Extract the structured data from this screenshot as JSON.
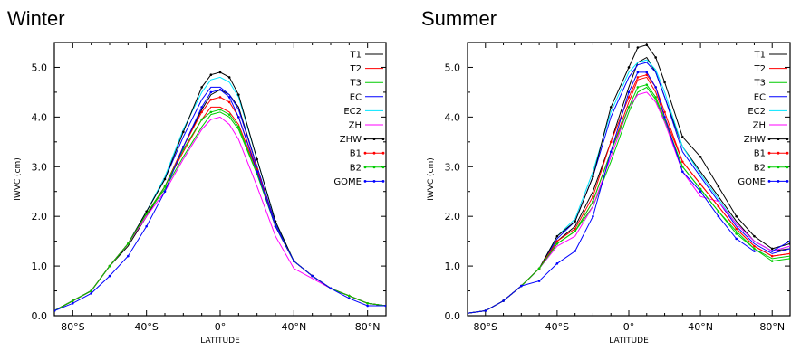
{
  "chart_data": [
    {
      "type": "line",
      "title": "Winter",
      "xlabel": "LATITUDE",
      "ylabel": "IWVC (cm)",
      "xlim": [
        -90,
        90
      ],
      "ylim": [
        0,
        5.5
      ],
      "xticks": [
        -80,
        -40,
        0,
        40,
        80
      ],
      "xtick_labels": [
        "80°S",
        "40°S",
        "0°",
        "40°N",
        "80°N"
      ],
      "yticks": [
        0,
        1,
        2,
        3,
        4,
        5
      ],
      "ytick_labels": [
        "0.0",
        "1.0",
        "2.0",
        "3.0",
        "4.0",
        "5.0"
      ],
      "legend_position": "top-right",
      "series": [
        {
          "name": "T1",
          "color": "#000000",
          "marker": false,
          "x": [
            -90,
            -80,
            -70,
            -60,
            -50,
            -40,
            -30,
            -20,
            -10,
            -5,
            0,
            5,
            10,
            20,
            30,
            40,
            50,
            60,
            70,
            80,
            90
          ],
          "y": [
            0.1,
            0.3,
            0.5,
            1.0,
            1.4,
            2.0,
            2.6,
            3.4,
            4.15,
            4.45,
            4.55,
            4.45,
            4.2,
            3.0,
            1.8,
            1.1,
            0.8,
            0.55,
            0.4,
            0.25,
            0.2
          ]
        },
        {
          "name": "T2",
          "color": "#ff0000",
          "marker": false,
          "x": [
            -90,
            -80,
            -70,
            -60,
            -50,
            -40,
            -30,
            -20,
            -10,
            -5,
            0,
            5,
            10,
            20,
            30,
            40,
            50,
            60,
            70,
            80,
            90
          ],
          "y": [
            0.1,
            0.3,
            0.5,
            1.0,
            1.45,
            2.05,
            2.6,
            3.3,
            3.95,
            4.2,
            4.2,
            4.1,
            3.85,
            2.9,
            1.8,
            1.1,
            0.8,
            0.55,
            0.4,
            0.25,
            0.2
          ]
        },
        {
          "name": "T3",
          "color": "#00cc00",
          "marker": false,
          "x": [
            -90,
            -80,
            -70,
            -60,
            -50,
            -40,
            -30,
            -20,
            -10,
            -5,
            0,
            5,
            10,
            20,
            30,
            40,
            50,
            60,
            70,
            80,
            90
          ],
          "y": [
            0.1,
            0.3,
            0.5,
            1.0,
            1.45,
            2.05,
            2.55,
            3.2,
            3.8,
            4.05,
            4.1,
            4.0,
            3.75,
            2.85,
            1.8,
            1.1,
            0.8,
            0.55,
            0.4,
            0.25,
            0.2
          ]
        },
        {
          "name": "EC",
          "color": "#0000ff",
          "marker": false,
          "x": [
            -90,
            -80,
            -70,
            -60,
            -50,
            -40,
            -30,
            -20,
            -10,
            -5,
            0,
            5,
            10,
            20,
            30,
            40,
            50,
            60,
            70,
            80,
            90
          ],
          "y": [
            0.1,
            0.3,
            0.5,
            1.0,
            1.45,
            2.1,
            2.75,
            3.6,
            4.35,
            4.6,
            4.6,
            4.45,
            4.15,
            3.0,
            1.85,
            1.1,
            0.8,
            0.55,
            0.4,
            0.25,
            0.2
          ]
        },
        {
          "name": "EC2",
          "color": "#00e5ff",
          "marker": false,
          "x": [
            -90,
            -80,
            -70,
            -60,
            -50,
            -40,
            -30,
            -20,
            -10,
            -5,
            0,
            5,
            10,
            20,
            30,
            40,
            50,
            60,
            70,
            80,
            90
          ],
          "y": [
            0.1,
            0.3,
            0.5,
            1.0,
            1.45,
            2.1,
            2.8,
            3.75,
            4.5,
            4.75,
            4.8,
            4.7,
            4.4,
            3.15,
            1.9,
            1.1,
            0.8,
            0.55,
            0.4,
            0.25,
            0.2
          ]
        },
        {
          "name": "ZH",
          "color": "#ff00ff",
          "marker": false,
          "x": [
            -90,
            -80,
            -70,
            -60,
            -50,
            -40,
            -30,
            -20,
            -10,
            -5,
            0,
            5,
            10,
            20,
            30,
            40,
            50,
            60,
            70,
            80,
            90
          ],
          "y": [
            0.1,
            0.3,
            0.5,
            1.0,
            1.45,
            2.0,
            2.5,
            3.15,
            3.75,
            3.95,
            4.0,
            3.85,
            3.55,
            2.6,
            1.6,
            0.95,
            0.75,
            0.55,
            0.4,
            0.25,
            0.2
          ]
        },
        {
          "name": "ZHW",
          "color": "#000000",
          "marker": true,
          "x": [
            -90,
            -80,
            -70,
            -60,
            -50,
            -40,
            -30,
            -20,
            -10,
            -5,
            0,
            5,
            10,
            20,
            30,
            40,
            50,
            60,
            70,
            80,
            90
          ],
          "y": [
            0.1,
            0.3,
            0.5,
            1.0,
            1.45,
            2.1,
            2.75,
            3.7,
            4.6,
            4.85,
            4.9,
            4.8,
            4.45,
            3.15,
            1.9,
            1.1,
            0.8,
            0.55,
            0.4,
            0.25,
            0.2
          ]
        },
        {
          "name": "B1",
          "color": "#ff0000",
          "marker": true,
          "x": [
            -90,
            -80,
            -70,
            -60,
            -50,
            -40,
            -30,
            -20,
            -10,
            -5,
            0,
            5,
            10,
            20,
            30,
            40,
            50,
            60,
            70,
            80,
            90
          ],
          "y": [
            0.1,
            0.3,
            0.5,
            1.0,
            1.45,
            2.05,
            2.6,
            3.4,
            4.1,
            4.35,
            4.4,
            4.3,
            4.0,
            2.95,
            1.8,
            1.1,
            0.8,
            0.55,
            0.4,
            0.25,
            0.2
          ]
        },
        {
          "name": "B2",
          "color": "#00cc00",
          "marker": true,
          "x": [
            -90,
            -80,
            -70,
            -60,
            -50,
            -40,
            -30,
            -20,
            -10,
            -5,
            0,
            5,
            10,
            20,
            30,
            40,
            50,
            60,
            70,
            80,
            90
          ],
          "y": [
            0.1,
            0.3,
            0.5,
            1.0,
            1.45,
            2.05,
            2.6,
            3.35,
            3.95,
            4.1,
            4.15,
            4.05,
            3.8,
            2.85,
            1.8,
            1.1,
            0.8,
            0.55,
            0.4,
            0.25,
            0.2
          ]
        },
        {
          "name": "GOME",
          "color": "#0000ff",
          "marker": true,
          "x": [
            -90,
            -80,
            -70,
            -60,
            -50,
            -40,
            -30,
            -20,
            -10,
            -5,
            0,
            5,
            10,
            20,
            30,
            40,
            50,
            60,
            70,
            80,
            90
          ],
          "y": [
            0.1,
            0.25,
            0.45,
            0.8,
            1.2,
            1.8,
            2.5,
            3.4,
            4.2,
            4.5,
            4.55,
            4.4,
            4.0,
            2.9,
            1.8,
            1.1,
            0.8,
            0.55,
            0.35,
            0.2,
            0.2
          ]
        }
      ]
    },
    {
      "type": "line",
      "title": "Summer",
      "xlabel": "LATITUDE",
      "ylabel": "IWVC (cm)",
      "xlim": [
        -90,
        90
      ],
      "ylim": [
        0,
        5.5
      ],
      "xticks": [
        -80,
        -40,
        0,
        40,
        80
      ],
      "xtick_labels": [
        "80°S",
        "40°S",
        "0°",
        "40°N",
        "80°N"
      ],
      "yticks": [
        0,
        1,
        2,
        3,
        4,
        5
      ],
      "ytick_labels": [
        "0.0",
        "1.0",
        "2.0",
        "3.0",
        "4.0",
        "5.0"
      ],
      "legend_position": "top-right",
      "series": [
        {
          "name": "T1",
          "color": "#000000",
          "marker": false,
          "x": [
            -90,
            -80,
            -70,
            -60,
            -50,
            -40,
            -30,
            -20,
            -10,
            0,
            5,
            10,
            15,
            20,
            30,
            40,
            50,
            60,
            70,
            80,
            90
          ],
          "y": [
            0.05,
            0.1,
            0.3,
            0.6,
            0.95,
            1.5,
            1.8,
            2.5,
            3.5,
            4.6,
            5.1,
            5.2,
            4.9,
            4.4,
            3.4,
            2.9,
            2.4,
            1.9,
            1.5,
            1.3,
            1.35
          ]
        },
        {
          "name": "T2",
          "color": "#ff0000",
          "marker": false,
          "x": [
            -90,
            -80,
            -70,
            -60,
            -50,
            -40,
            -30,
            -20,
            -10,
            0,
            5,
            10,
            15,
            20,
            30,
            40,
            50,
            60,
            70,
            80,
            90
          ],
          "y": [
            0.05,
            0.1,
            0.3,
            0.6,
            0.95,
            1.45,
            1.7,
            2.3,
            3.3,
            4.3,
            4.75,
            4.8,
            4.5,
            4.0,
            3.1,
            2.65,
            2.2,
            1.75,
            1.4,
            1.2,
            1.25
          ]
        },
        {
          "name": "T3",
          "color": "#00cc00",
          "marker": false,
          "x": [
            -90,
            -80,
            -70,
            -60,
            -50,
            -40,
            -30,
            -20,
            -10,
            0,
            5,
            10,
            15,
            20,
            30,
            40,
            50,
            60,
            70,
            80,
            90
          ],
          "y": [
            0.05,
            0.1,
            0.3,
            0.6,
            0.95,
            1.45,
            1.7,
            2.2,
            3.1,
            4.1,
            4.5,
            4.6,
            4.35,
            3.9,
            3.0,
            2.55,
            2.1,
            1.7,
            1.35,
            1.15,
            1.2
          ]
        },
        {
          "name": "EC",
          "color": "#0000ff",
          "marker": false,
          "x": [
            -90,
            -80,
            -70,
            -60,
            -50,
            -40,
            -30,
            -20,
            -10,
            0,
            5,
            10,
            15,
            20,
            30,
            40,
            50,
            60,
            70,
            80,
            90
          ],
          "y": [
            0.05,
            0.1,
            0.3,
            0.6,
            0.95,
            1.55,
            1.9,
            2.8,
            4.0,
            4.8,
            5.05,
            5.1,
            4.9,
            4.4,
            3.3,
            2.8,
            2.3,
            1.8,
            1.45,
            1.25,
            1.35
          ]
        },
        {
          "name": "EC2",
          "color": "#00e5ff",
          "marker": false,
          "x": [
            -90,
            -80,
            -70,
            -60,
            -50,
            -40,
            -30,
            -20,
            -10,
            0,
            5,
            10,
            15,
            20,
            30,
            40,
            50,
            60,
            70,
            80,
            90
          ],
          "y": [
            0.05,
            0.1,
            0.3,
            0.6,
            0.95,
            1.6,
            1.95,
            2.9,
            4.1,
            4.9,
            5.1,
            5.15,
            4.95,
            4.5,
            3.4,
            2.85,
            2.35,
            1.85,
            1.5,
            1.3,
            1.4
          ]
        },
        {
          "name": "ZH",
          "color": "#ff00ff",
          "marker": false,
          "x": [
            -90,
            -80,
            -70,
            -60,
            -50,
            -40,
            -30,
            -20,
            -10,
            0,
            5,
            10,
            15,
            20,
            30,
            40,
            50,
            60,
            70,
            80,
            90
          ],
          "y": [
            0.05,
            0.1,
            0.3,
            0.6,
            0.95,
            1.4,
            1.6,
            2.2,
            3.2,
            4.2,
            4.45,
            4.5,
            4.3,
            3.9,
            2.9,
            2.4,
            2.3,
            1.85,
            1.5,
            1.3,
            1.4
          ]
        },
        {
          "name": "ZHW",
          "color": "#000000",
          "marker": true,
          "x": [
            -90,
            -80,
            -70,
            -60,
            -50,
            -40,
            -30,
            -20,
            -10,
            0,
            5,
            10,
            15,
            20,
            30,
            40,
            50,
            60,
            70,
            80,
            90
          ],
          "y": [
            0.05,
            0.1,
            0.3,
            0.6,
            0.95,
            1.6,
            1.9,
            2.8,
            4.2,
            5.0,
            5.4,
            5.45,
            5.2,
            4.7,
            3.6,
            3.2,
            2.6,
            2.0,
            1.6,
            1.35,
            1.45
          ]
        },
        {
          "name": "B1",
          "color": "#ff0000",
          "marker": true,
          "x": [
            -90,
            -80,
            -70,
            -60,
            -50,
            -40,
            -30,
            -20,
            -10,
            0,
            5,
            10,
            15,
            20,
            30,
            40,
            50,
            60,
            70,
            80,
            90
          ],
          "y": [
            0.05,
            0.1,
            0.3,
            0.6,
            0.95,
            1.5,
            1.75,
            2.4,
            3.5,
            4.4,
            4.8,
            4.85,
            4.6,
            4.1,
            3.1,
            2.65,
            2.2,
            1.75,
            1.4,
            1.2,
            1.25
          ]
        },
        {
          "name": "B2",
          "color": "#00cc00",
          "marker": true,
          "x": [
            -90,
            -80,
            -70,
            -60,
            -50,
            -40,
            -30,
            -20,
            -10,
            0,
            5,
            10,
            15,
            20,
            30,
            40,
            50,
            60,
            70,
            80,
            90
          ],
          "y": [
            0.05,
            0.1,
            0.3,
            0.6,
            0.95,
            1.45,
            1.7,
            2.3,
            3.3,
            4.2,
            4.6,
            4.65,
            4.4,
            3.95,
            3.0,
            2.55,
            2.1,
            1.65,
            1.35,
            1.1,
            1.15
          ]
        },
        {
          "name": "GOME",
          "color": "#0000ff",
          "marker": true,
          "x": [
            -90,
            -80,
            -70,
            -60,
            -50,
            -40,
            -30,
            -20,
            -10,
            0,
            5,
            10,
            15,
            20,
            30,
            40,
            50,
            60,
            70,
            80,
            90
          ],
          "y": [
            0.05,
            0.1,
            0.3,
            0.6,
            0.7,
            1.05,
            1.3,
            2.0,
            3.3,
            4.5,
            4.9,
            4.9,
            4.6,
            4.0,
            2.9,
            2.5,
            2.0,
            1.55,
            1.3,
            1.3,
            1.5
          ]
        }
      ]
    }
  ]
}
